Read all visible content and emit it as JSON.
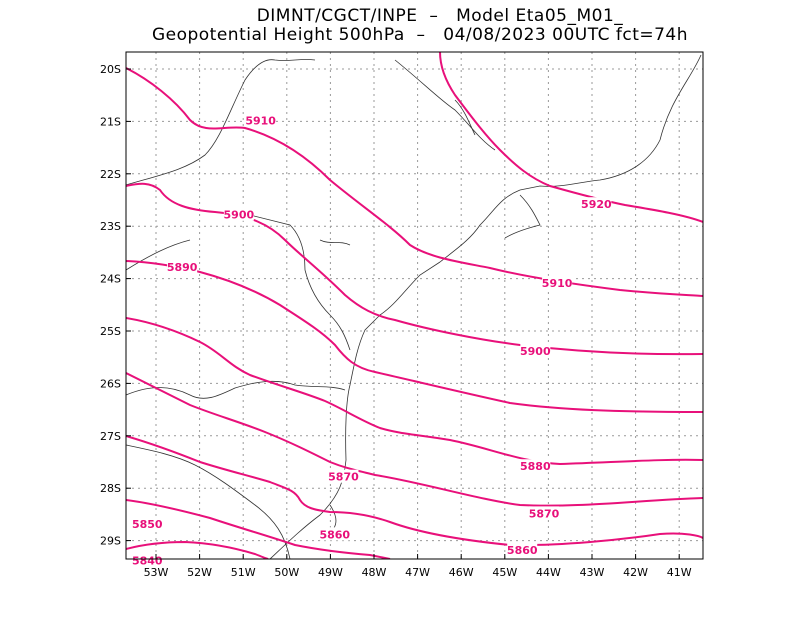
{
  "title_line1": "DIMNT/CGCT/INPE  –   Model Eta05_M01_",
  "title_line2": "Geopotential Height 500hPa  –   04/08/2023 00UTC fct=74h",
  "contour_color": "#e8107a",
  "y_ticks": [
    "20S",
    "21S",
    "22S",
    "23S",
    "24S",
    "25S",
    "26S",
    "27S",
    "28S",
    "29S"
  ],
  "x_ticks": [
    "53W",
    "52W",
    "51W",
    "50W",
    "49W",
    "48W",
    "47W",
    "46W",
    "45W",
    "44W",
    "43W",
    "42W",
    "41W"
  ],
  "contour_labels": [
    {
      "text": "5910",
      "lon": -50.6,
      "lat": -21.0
    },
    {
      "text": "5900",
      "lon": -51.1,
      "lat": -22.8
    },
    {
      "text": "5890",
      "lon": -52.4,
      "lat": -23.8
    },
    {
      "text": "5920",
      "lon": -42.9,
      "lat": -22.6
    },
    {
      "text": "5910",
      "lon": -43.8,
      "lat": -24.1
    },
    {
      "text": "5900",
      "lon": -44.3,
      "lat": -25.4
    },
    {
      "text": "5880",
      "lon": -44.3,
      "lat": -27.6
    },
    {
      "text": "5870",
      "lon": -48.7,
      "lat": -27.8
    },
    {
      "text": "5870",
      "lon": -44.1,
      "lat": -28.5
    },
    {
      "text": "5860",
      "lon": -48.9,
      "lat": -28.9
    },
    {
      "text": "5860",
      "lon": -44.6,
      "lat": -29.2
    },
    {
      "text": "5850",
      "lon": -53.2,
      "lat": -28.7
    },
    {
      "text": "5840",
      "lon": -53.2,
      "lat": -29.4
    }
  ]
}
